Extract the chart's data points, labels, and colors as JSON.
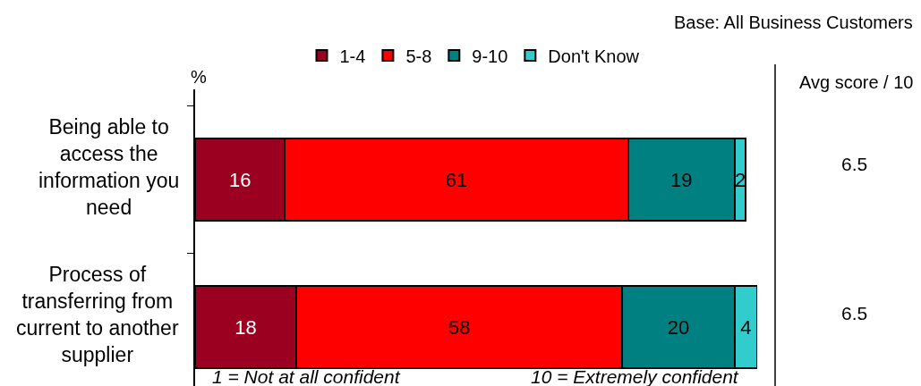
{
  "chart_data": {
    "type": "bar",
    "orientation": "horizontal",
    "stacked": true,
    "categories": [
      "Being able to access the information you need",
      "Process of transferring from current to another supplier"
    ],
    "series": [
      {
        "name": "1-4",
        "color": "#9b0020",
        "values": [
          16,
          18
        ]
      },
      {
        "name": "5-8",
        "color": "#ff0000",
        "values": [
          61,
          58
        ]
      },
      {
        "name": "9-10",
        "color": "#008080",
        "values": [
          19,
          20
        ]
      },
      {
        "name": "Don't Know",
        "color": "#33cccc",
        "values": [
          2,
          4
        ]
      }
    ],
    "data_labels": true,
    "legend": "top",
    "tick_labels": "y",
    "annotations": [
      "Base: All Business Customers",
      "%",
      "Avg score / 10",
      "6.5",
      "6.5",
      "1 = Not at all confident",
      "10 = Extremely confident"
    ]
  }
}
